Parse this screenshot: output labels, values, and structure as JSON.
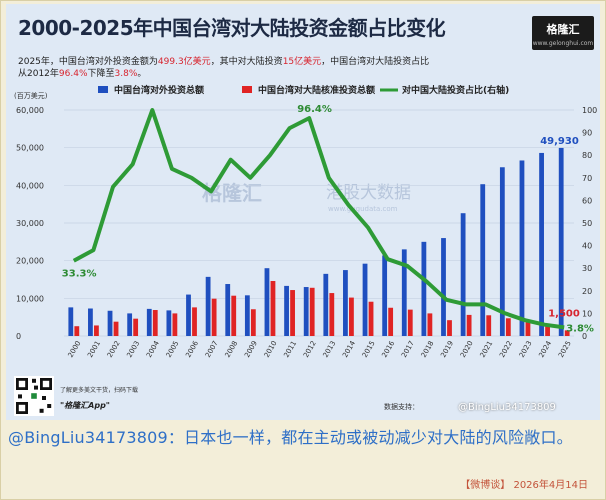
{
  "header": {
    "title": "2000-2025年中国台湾对大陆投资金额占比变化",
    "logo": "格隆汇",
    "logo_sub": "www.gelonghui.com"
  },
  "subtitle": {
    "l1_a": "2025年，中国台湾对外投资金额为",
    "l1_v1": "499.3亿美元",
    "l1_b": "，其中对大陆投资",
    "l1_v2": "15亿美元",
    "l1_c": "，中国台湾对大陆投资占比",
    "l2_a": "从2012年",
    "l2_v1": "96.4%",
    "l2_b": "下降至",
    "l2_v2": "3.8%",
    "l2_c": "。"
  },
  "chart_data": {
    "type": "bar",
    "x": [
      2000,
      2001,
      2002,
      2003,
      2004,
      2005,
      2006,
      2007,
      2008,
      2009,
      2010,
      2011,
      2012,
      2013,
      2014,
      2015,
      2016,
      2017,
      2018,
      2019,
      2020,
      2021,
      2022,
      2023,
      2024,
      2025
    ],
    "series": [
      {
        "name": "中国台湾对外投资总额",
        "type": "bar",
        "axis": "left",
        "color": "#1f4fbf",
        "values": [
          7600,
          7300,
          6700,
          6000,
          7200,
          6800,
          11000,
          15700,
          13800,
          10800,
          18000,
          13300,
          13000,
          16500,
          17500,
          19200,
          21400,
          23000,
          25000,
          26000,
          32600,
          40300,
          44800,
          46600,
          48600,
          49930
        ]
      },
      {
        "name": "中国台湾对大陆核准投资总额",
        "type": "bar",
        "axis": "left",
        "color": "#e02424",
        "values": [
          2600,
          2800,
          3800,
          4600,
          6900,
          6000,
          7600,
          9900,
          10700,
          7100,
          14600,
          12200,
          12800,
          11400,
          10200,
          9100,
          7500,
          7000,
          6000,
          4200,
          5600,
          5500,
          4700,
          3600,
          2800,
          1500
        ]
      },
      {
        "name": "对中国大陆投资占比(右轴)",
        "type": "line",
        "axis": "right",
        "color": "#2e9b36",
        "values": [
          33.3,
          38,
          66,
          76,
          100,
          74,
          70,
          64,
          78,
          70,
          80,
          92,
          96.4,
          70,
          58,
          48,
          34,
          31,
          24,
          16,
          14,
          14,
          10,
          7,
          5,
          3.8
        ]
      }
    ],
    "ylim": [
      0,
      60000
    ],
    "yticks": [
      "0",
      "10,000",
      "20,000",
      "30,000",
      "40,000",
      "50,000",
      "60,000"
    ],
    "y2lim": [
      0,
      100
    ],
    "y2ticks": [
      "0",
      "10",
      "20",
      "30",
      "40",
      "50",
      "60",
      "70",
      "80",
      "90",
      "100"
    ],
    "yunit": "(百万美元)",
    "annotations": [
      "33.3%",
      "96.4%",
      "49,930",
      "1,500",
      "3.8%"
    ],
    "legend_position": "top",
    "grid": true
  },
  "watermark": {
    "brand": "格隆汇",
    "site": "港股大数据",
    "url": "www.gugudata.com"
  },
  "footer_left": {
    "qr_text": "了解更多美文干货，扫码下载",
    "app_name": "\"格隆汇App\""
  },
  "source_note": "数据支持：",
  "weibo_watermark": "@BingLiu34173809",
  "comment": "@BingLiu34173809：日本也一样，都在主动或被动减少对大陆的风险敞口。",
  "footer": {
    "source": "【微博谈】",
    "date": "2026年4月14日"
  }
}
